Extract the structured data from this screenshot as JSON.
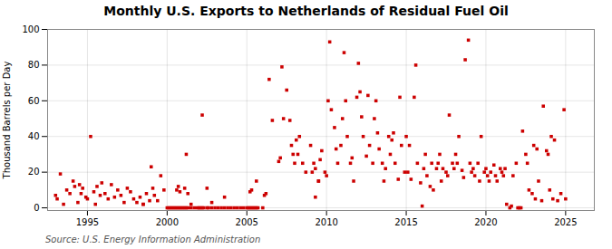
{
  "chart_data": {
    "type": "scatter",
    "title": "Monthly U.S. Exports to Netherlands of Residual Fuel Oil",
    "ylabel": "Thousand Barrels per Day",
    "caption": "Source: U.S. Energy Information Administration",
    "color": "#cc0000",
    "marker": "square",
    "grid": true,
    "xlim": [
      1992.5,
      2026.8
    ],
    "xticks": [
      1995,
      2000,
      2005,
      2010,
      2015,
      2020,
      2025
    ],
    "ylim": [
      -1.5,
      100
    ],
    "yticks": [
      0,
      20,
      40,
      60,
      80,
      100
    ],
    "x": [
      1993.0,
      1993.1,
      1993.3,
      1993.5,
      1993.7,
      1993.9,
      1994.1,
      1994.2,
      1994.4,
      1994.5,
      1994.6,
      1994.7,
      1994.9,
      1995.0,
      1995.2,
      1995.4,
      1995.5,
      1995.6,
      1995.8,
      1995.9,
      1996.1,
      1996.3,
      1996.5,
      1996.7,
      1996.9,
      1997.1,
      1997.3,
      1997.5,
      1997.7,
      1997.9,
      1998.1,
      1998.3,
      1998.5,
      1998.7,
      1998.9,
      1999.0,
      1999.2,
      1999.4,
      1999.6,
      1999.8,
      2000.0,
      2000.1,
      2000.2,
      2000.3,
      2000.4,
      2000.5,
      2000.6,
      2000.7,
      2000.8,
      2000.9,
      2001.0,
      2001.1,
      2001.2,
      2001.3,
      2001.5,
      2001.7,
      2001.9,
      2002.0,
      2002.1,
      2002.2,
      2002.3,
      2002.5,
      2002.6,
      2002.8,
      2003.0,
      2003.2,
      2003.4,
      2003.6,
      2003.8,
      2004.0,
      2004.2,
      2004.4,
      2004.6,
      2004.8,
      2005.0,
      2005.1,
      2005.2,
      2005.3,
      2005.4,
      2005.5,
      2005.6,
      2005.7,
      1998.5,
      1999.1,
      2000.6,
      2000.7,
      2000.8,
      2001.1,
      2001.2,
      2001.3,
      2001.5,
      2002.2,
      2002.5,
      2002.8,
      2003.6,
      2005.2,
      2005.3,
      2005.6,
      2006.0,
      2006.1,
      2006.2,
      2006.4,
      2006.6,
      2007.0,
      2007.1,
      2007.2,
      2007.3,
      2007.5,
      2007.7,
      2007.8,
      2007.9,
      2008.0,
      2008.1,
      2008.2,
      2008.3,
      2008.5,
      2008.7,
      2009.0,
      2009.1,
      2009.2,
      2009.3,
      2009.5,
      2009.6,
      2009.7,
      2009.9,
      2009.3,
      2009.5,
      2010.0,
      2010.1,
      2010.2,
      2010.3,
      2010.5,
      2010.6,
      2010.7,
      2010.9,
      2011.0,
      2011.1,
      2011.2,
      2011.3,
      2011.5,
      2011.6,
      2011.7,
      2011.9,
      2012.0,
      2012.1,
      2012.2,
      2012.3,
      2012.5,
      2012.6,
      2012.7,
      2012.9,
      2013.0,
      2013.1,
      2013.2,
      2013.3,
      2013.5,
      2013.6,
      2013.7,
      2013.9,
      2014.0,
      2014.1,
      2014.2,
      2014.3,
      2014.5,
      2014.6,
      2014.7,
      2014.9,
      2015.0,
      2015.1,
      2015.2,
      2015.3,
      2015.5,
      2015.6,
      2015.7,
      2015.9,
      2016.0,
      2016.1,
      2016.2,
      2016.3,
      2016.5,
      2016.6,
      2016.7,
      2016.9,
      2017.0,
      2017.1,
      2017.2,
      2017.3,
      2017.5,
      2017.6,
      2017.7,
      2017.9,
      2018.0,
      2018.1,
      2018.2,
      2018.3,
      2018.5,
      2018.6,
      2018.7,
      2018.9,
      2019.0,
      2019.1,
      2019.2,
      2019.3,
      2019.5,
      2019.6,
      2019.7,
      2019.9,
      2020.0,
      2020.1,
      2020.2,
      2020.3,
      2020.5,
      2020.6,
      2020.7,
      2020.9,
      2021.0,
      2021.1,
      2021.2,
      2021.3,
      2021.5,
      2021.6,
      2021.7,
      2021.9,
      2022.0,
      2022.1,
      2022.2,
      2022.3,
      2022.5,
      2022.6,
      2022.7,
      2022.9,
      2023.0,
      2023.1,
      2023.2,
      2023.3,
      2023.5,
      2023.6,
      2023.8,
      2023.9,
      2024.0,
      2024.1,
      2024.2,
      2024.3,
      2024.5,
      2024.7,
      2024.9,
      2025.0
    ],
    "values": [
      7,
      5,
      19,
      2,
      10,
      8,
      15,
      12,
      3,
      13,
      8,
      11,
      6,
      5,
      40,
      9,
      2,
      12,
      7,
      14,
      8,
      5,
      13,
      6,
      10,
      7,
      3,
      11,
      9,
      5,
      3,
      6,
      2,
      8,
      4,
      23,
      7,
      4,
      18,
      10,
      0,
      0,
      0,
      0,
      0,
      0,
      0,
      0,
      0,
      0,
      0,
      0,
      0,
      0,
      0,
      0,
      0,
      0,
      0,
      0,
      0,
      0,
      0,
      0,
      0,
      0,
      0,
      0,
      0,
      0,
      0,
      0,
      0,
      0,
      0,
      0,
      0,
      0,
      0,
      0,
      0,
      0,
      2,
      11,
      10,
      12,
      9,
      11,
      30,
      8,
      2,
      52,
      11,
      3,
      6,
      9,
      10,
      15,
      0,
      7,
      8,
      72,
      49,
      26,
      28,
      79,
      50,
      66,
      49,
      35,
      30,
      25,
      38,
      30,
      40,
      25,
      20,
      35,
      20,
      25,
      22,
      15,
      27,
      32,
      20,
      6,
      15,
      18,
      60,
      93,
      55,
      45,
      33,
      25,
      35,
      50,
      87,
      60,
      40,
      25,
      28,
      15,
      62,
      81,
      65,
      51,
      40,
      29,
      63,
      35,
      25,
      50,
      60,
      42,
      33,
      25,
      15,
      22,
      40,
      30,
      38,
      42,
      25,
      16,
      62,
      35,
      20,
      40,
      20,
      35,
      16,
      62,
      80,
      25,
      14,
      1,
      22,
      30,
      18,
      12,
      25,
      10,
      22,
      25,
      30,
      15,
      22,
      20,
      18,
      52,
      25,
      22,
      30,
      25,
      40,
      21,
      17,
      83,
      94,
      25,
      20,
      22,
      18,
      25,
      15,
      40,
      20,
      22,
      18,
      15,
      20,
      24,
      18,
      15,
      22,
      20,
      18,
      22,
      2,
      0,
      1,
      18,
      25,
      0,
      0,
      0,
      43,
      30,
      25,
      10,
      8,
      35,
      5,
      33,
      15,
      4,
      57,
      32,
      30,
      10,
      40,
      5,
      38,
      4,
      8,
      55,
      5
    ]
  }
}
